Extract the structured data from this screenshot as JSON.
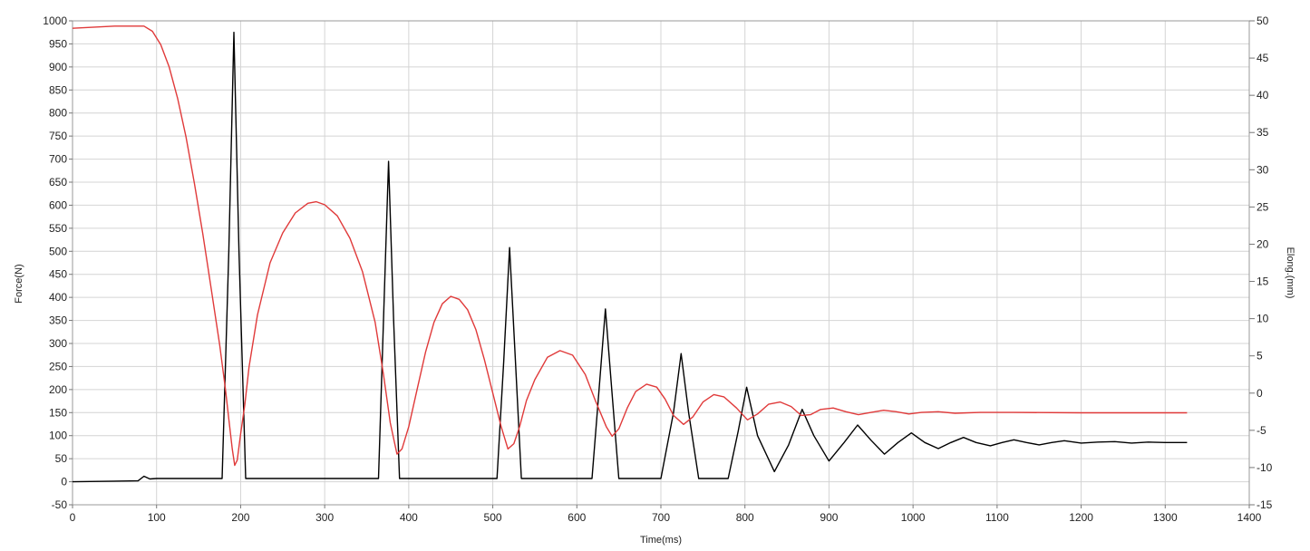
{
  "chart_data": {
    "type": "line",
    "title": "",
    "xlabel": "Time(ms)",
    "ylabel_left": "Force(N)",
    "ylabel_right": "Elong.(mm)",
    "xlim": [
      0,
      1400
    ],
    "ylim_left": [
      -50,
      1000
    ],
    "ylim_right": [
      -15,
      50
    ],
    "grid": true,
    "legend": "none",
    "x_ticks": [
      "0",
      "100",
      "200",
      "300",
      "400",
      "500",
      "600",
      "700",
      "800",
      "900",
      "1000",
      "1100",
      "1200",
      "1300",
      "1400"
    ],
    "y_left_ticks": [
      "-50",
      "0",
      "50",
      "100",
      "150",
      "200",
      "250",
      "300",
      "350",
      "400",
      "450",
      "500",
      "550",
      "600",
      "650",
      "700",
      "750",
      "800",
      "850",
      "900",
      "950",
      "1000"
    ],
    "y_right_ticks": [
      "-15",
      "-10",
      "-5",
      "0",
      "5",
      "10",
      "15",
      "20",
      "25",
      "30",
      "35",
      "40",
      "45",
      "50"
    ],
    "series": [
      {
        "axis": "left",
        "color": "#000000",
        "points": [
          [
            0,
            0
          ],
          [
            78,
            2
          ],
          [
            85,
            12
          ],
          [
            92,
            6
          ],
          [
            100,
            7
          ],
          [
            178,
            7
          ],
          [
            186,
            500
          ],
          [
            192,
            975
          ],
          [
            198,
            500
          ],
          [
            206,
            7
          ],
          [
            220,
            7
          ],
          [
            364,
            7
          ],
          [
            370,
            350
          ],
          [
            376,
            695
          ],
          [
            382,
            350
          ],
          [
            389,
            7
          ],
          [
            400,
            7
          ],
          [
            505,
            7
          ],
          [
            513,
            260
          ],
          [
            520,
            508
          ],
          [
            527,
            260
          ],
          [
            534,
            7
          ],
          [
            545,
            7
          ],
          [
            618,
            7
          ],
          [
            626,
            190
          ],
          [
            634,
            375
          ],
          [
            642,
            190
          ],
          [
            650,
            7
          ],
          [
            660,
            7
          ],
          [
            700,
            7
          ],
          [
            715,
            150
          ],
          [
            724,
            278
          ],
          [
            733,
            150
          ],
          [
            745,
            7
          ],
          [
            780,
            7
          ],
          [
            792,
            110
          ],
          [
            802,
            205
          ],
          [
            815,
            100
          ],
          [
            835,
            22
          ],
          [
            852,
            80
          ],
          [
            868,
            157
          ],
          [
            882,
            100
          ],
          [
            900,
            45
          ],
          [
            918,
            85
          ],
          [
            934,
            123
          ],
          [
            950,
            90
          ],
          [
            966,
            60
          ],
          [
            982,
            85
          ],
          [
            998,
            106
          ],
          [
            1014,
            85
          ],
          [
            1030,
            72
          ],
          [
            1045,
            85
          ],
          [
            1060,
            96
          ],
          [
            1075,
            85
          ],
          [
            1092,
            78
          ],
          [
            1106,
            85
          ],
          [
            1120,
            91
          ],
          [
            1135,
            85
          ],
          [
            1150,
            80
          ],
          [
            1165,
            85
          ],
          [
            1180,
            89
          ],
          [
            1200,
            84
          ],
          [
            1220,
            86
          ],
          [
            1240,
            87
          ],
          [
            1260,
            84
          ],
          [
            1280,
            86
          ],
          [
            1300,
            85
          ],
          [
            1326,
            85
          ]
        ]
      },
      {
        "axis": "right",
        "color": "#e03a3a",
        "points": [
          [
            0,
            49
          ],
          [
            50,
            49.3
          ],
          [
            85,
            49.3
          ],
          [
            95,
            48.6
          ],
          [
            105,
            46.8
          ],
          [
            115,
            43.8
          ],
          [
            125,
            39.6
          ],
          [
            135,
            34.4
          ],
          [
            145,
            28.2
          ],
          [
            155,
            21.4
          ],
          [
            165,
            14.0
          ],
          [
            175,
            6.5
          ],
          [
            182,
            0.5
          ],
          [
            186,
            -3.5
          ],
          [
            190,
            -7.5
          ],
          [
            193,
            -9.7
          ],
          [
            196,
            -9.0
          ],
          [
            200,
            -5.5
          ],
          [
            205,
            -1.5
          ],
          [
            210,
            3.5
          ],
          [
            220,
            10.5
          ],
          [
            235,
            17.5
          ],
          [
            250,
            21.5
          ],
          [
            265,
            24.2
          ],
          [
            280,
            25.5
          ],
          [
            290,
            25.7
          ],
          [
            300,
            25.3
          ],
          [
            315,
            23.8
          ],
          [
            330,
            20.8
          ],
          [
            345,
            16.3
          ],
          [
            360,
            9.5
          ],
          [
            370,
            2.5
          ],
          [
            378,
            -4
          ],
          [
            386,
            -8.2
          ],
          [
            392,
            -7.5
          ],
          [
            400,
            -4.5
          ],
          [
            410,
            0.5
          ],
          [
            420,
            5.5
          ],
          [
            430,
            9.5
          ],
          [
            440,
            12
          ],
          [
            450,
            13
          ],
          [
            460,
            12.6
          ],
          [
            470,
            11.2
          ],
          [
            480,
            8.5
          ],
          [
            490,
            4.5
          ],
          [
            500,
            0
          ],
          [
            510,
            -4.5
          ],
          [
            518,
            -7.5
          ],
          [
            525,
            -6.8
          ],
          [
            532,
            -4.5
          ],
          [
            540,
            -1
          ],
          [
            550,
            1.8
          ],
          [
            565,
            4.8
          ],
          [
            580,
            5.7
          ],
          [
            595,
            5.1
          ],
          [
            610,
            2.5
          ],
          [
            622,
            -1
          ],
          [
            635,
            -4.5
          ],
          [
            642,
            -5.8
          ],
          [
            650,
            -4.8
          ],
          [
            660,
            -2
          ],
          [
            670,
            0.2
          ],
          [
            683,
            1.2
          ],
          [
            695,
            0.8
          ],
          [
            705,
            -0.8
          ],
          [
            715,
            -3
          ],
          [
            727,
            -4.2
          ],
          [
            738,
            -3.2
          ],
          [
            750,
            -1.2
          ],
          [
            763,
            -0.2
          ],
          [
            775,
            -0.5
          ],
          [
            790,
            -2
          ],
          [
            803,
            -3.6
          ],
          [
            815,
            -2.8
          ],
          [
            828,
            -1.5
          ],
          [
            842,
            -1.2
          ],
          [
            855,
            -1.8
          ],
          [
            867,
            -3
          ],
          [
            878,
            -2.9
          ],
          [
            890,
            -2.2
          ],
          [
            905,
            -2
          ],
          [
            920,
            -2.5
          ],
          [
            935,
            -2.9
          ],
          [
            950,
            -2.6
          ],
          [
            965,
            -2.3
          ],
          [
            980,
            -2.5
          ],
          [
            995,
            -2.8
          ],
          [
            1010,
            -2.6
          ],
          [
            1030,
            -2.5
          ],
          [
            1050,
            -2.7
          ],
          [
            1080,
            -2.6
          ],
          [
            1120,
            -2.6
          ],
          [
            1200,
            -2.65
          ],
          [
            1326,
            -2.65
          ]
        ]
      }
    ]
  }
}
